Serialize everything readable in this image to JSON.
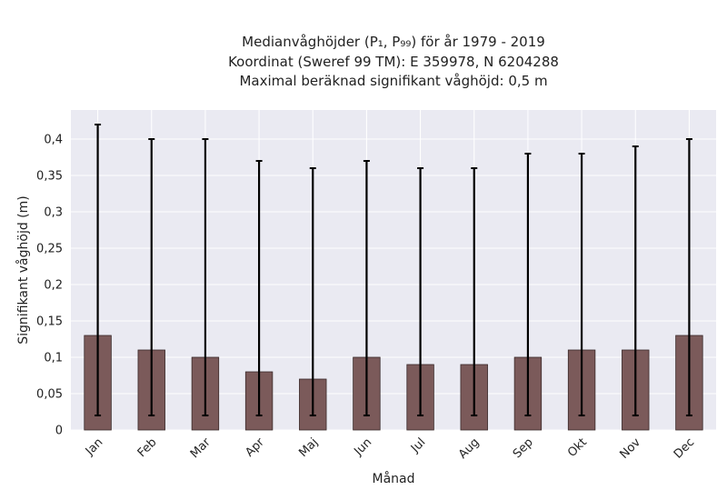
{
  "chart_data": {
    "type": "bar",
    "title_lines": [
      "Medianvåghöjder (P₁, P₉₉) för år 1979 - 2019",
      "Koordinat (Sweref 99 TM): E 359978, N 6204288",
      "Maximal beräknad signifikant våghöjd: 0,5 m"
    ],
    "xlabel": "Månad",
    "ylabel": "Signifikant våghöjd (m)",
    "categories": [
      "Jan",
      "Feb",
      "Mar",
      "Apr",
      "Maj",
      "Jun",
      "Jul",
      "Aug",
      "Sep",
      "Okt",
      "Nov",
      "Dec"
    ],
    "values": [
      0.13,
      0.11,
      0.1,
      0.08,
      0.07,
      0.1,
      0.09,
      0.09,
      0.1,
      0.11,
      0.11,
      0.13
    ],
    "error_low": [
      0.02,
      0.02,
      0.02,
      0.02,
      0.02,
      0.02,
      0.02,
      0.02,
      0.02,
      0.02,
      0.02,
      0.02
    ],
    "error_high": [
      0.42,
      0.4,
      0.4,
      0.37,
      0.36,
      0.37,
      0.36,
      0.36,
      0.38,
      0.38,
      0.39,
      0.4
    ],
    "ylim": [
      0,
      0.44
    ],
    "yticks": [
      0,
      0.05,
      0.1,
      0.15,
      0.2,
      0.25,
      0.3,
      0.35,
      0.4
    ],
    "ytick_labels": [
      "0",
      "0,05",
      "0,1",
      "0,15",
      "0,2",
      "0,25",
      "0,3",
      "0,35",
      "0,4"
    ],
    "grid": true,
    "colors": {
      "bar_fill": "#7b5a5a",
      "bar_edge": "#3a2a2a",
      "plot_background": "#eaeaf2",
      "grid": "#ffffff",
      "error_bar": "#000000"
    }
  }
}
